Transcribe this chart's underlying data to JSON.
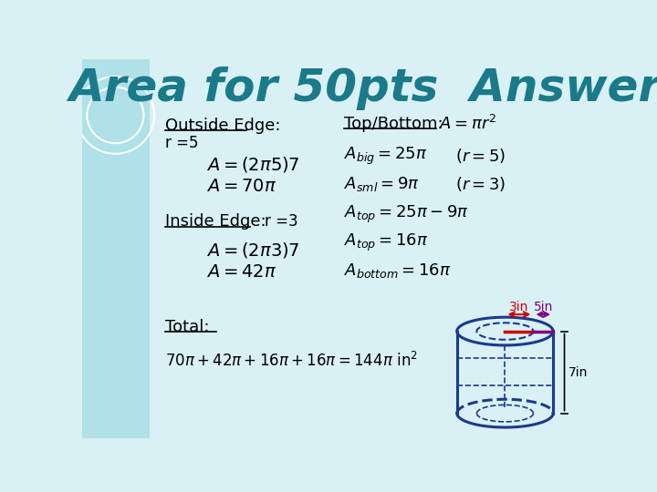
{
  "title": "Area for 50pts  Answer",
  "title_color": "#1a7a8a",
  "title_fontsize": 36,
  "bg_color": "#d9f0f5",
  "left_panel_color": "#b0e0e8",
  "outside_edge_label": "Outside Edge:",
  "inside_edge_label": "Inside Edge:",
  "top_bottom_label": "Top/Bottom:",
  "total_label": "Total:",
  "r5_label": "r =5",
  "r3_label": "r =3",
  "formula_outside1": "$A = (2\\pi 5)7$",
  "formula_outside2": "$A = 70\\pi$",
  "formula_inside1": "$A = (2\\pi 3)7$",
  "formula_inside2": "$A = 42\\pi$",
  "formula_tb_header": "$A= \\pi r^2$",
  "formula_abig": "$A_{big} = 25\\pi$",
  "formula_abig_r": "$(r = 5)$",
  "formula_asml": "$A_{sml} = 9\\pi$",
  "formula_asml_r": "$(r = 3)$",
  "formula_atop1": "$A_{top} = 25\\pi - 9\\pi$",
  "formula_atop2": "$A_{top} = 16\\pi$",
  "formula_abottom": "$A_{bottom} = 16\\pi$",
  "formula_total": "$70\\pi + 42\\pi + 16\\pi + 16\\pi = 144\\pi\\ \\mathrm{in}^2$",
  "dim_3in": "3in",
  "dim_5in": "5in",
  "dim_7in": "7in",
  "cyl_color": "#1a3a8a",
  "red_color": "#cc0000",
  "purple_color": "#800080"
}
